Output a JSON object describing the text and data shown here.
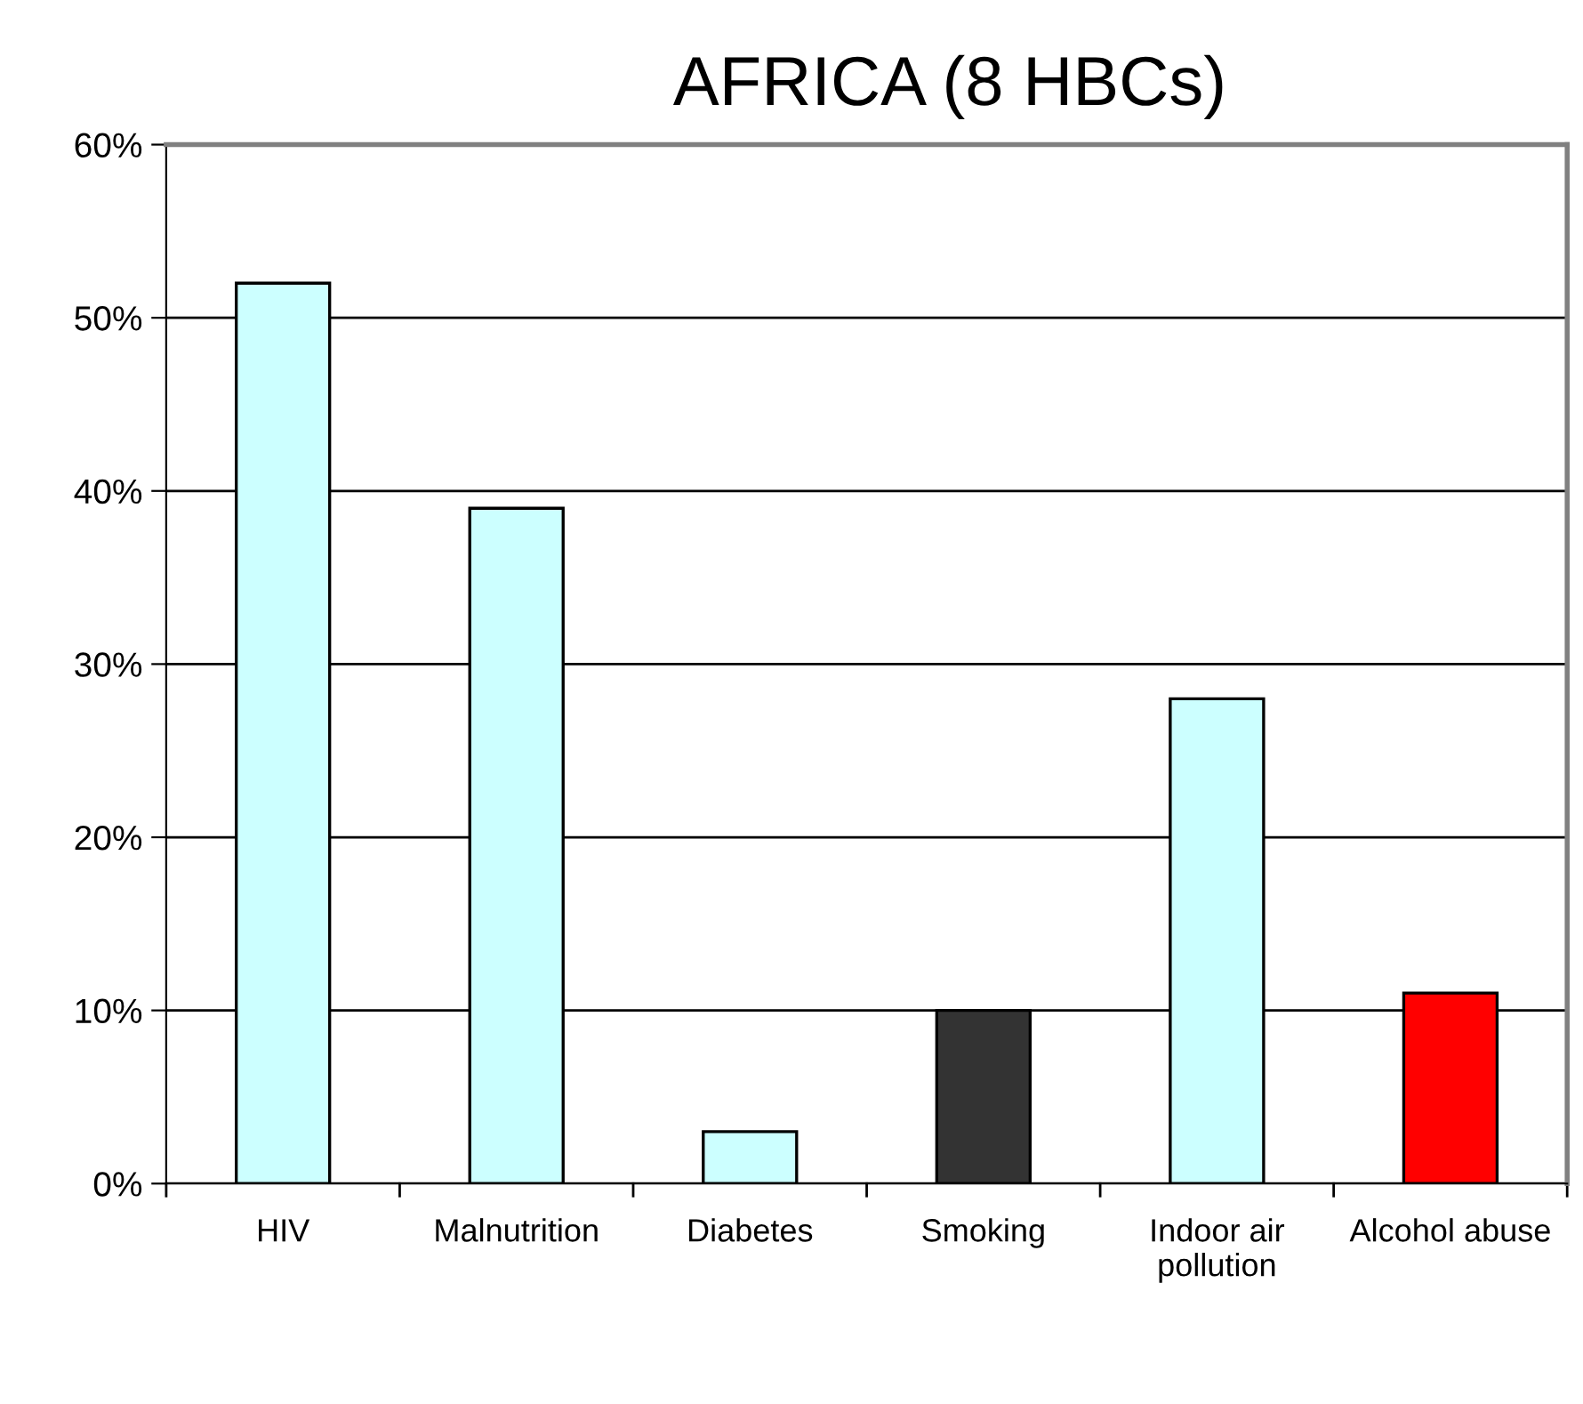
{
  "chart_data": {
    "type": "bar",
    "title": "AFRICA (8 HBCs)",
    "categories": [
      "HIV",
      "Malnutrition",
      "Diabetes",
      "Smoking",
      "Indoor air\npollution",
      "Alcohol abuse"
    ],
    "values": [
      52,
      39,
      3,
      10,
      28,
      11
    ],
    "colors": [
      "#ccffff",
      "#ccffff",
      "#ccffff",
      "#333333",
      "#ccffff",
      "#ff0000"
    ],
    "ylim": [
      0,
      60
    ],
    "yticks": [
      {
        "value": 0,
        "label": "0%"
      },
      {
        "value": 10,
        "label": "10%"
      },
      {
        "value": 20,
        "label": "20%"
      },
      {
        "value": 30,
        "label": "30%"
      },
      {
        "value": 40,
        "label": "40%"
      },
      {
        "value": 50,
        "label": "50%"
      },
      {
        "value": 60,
        "label": "60%"
      }
    ],
    "grid": "y",
    "legend": false
  }
}
